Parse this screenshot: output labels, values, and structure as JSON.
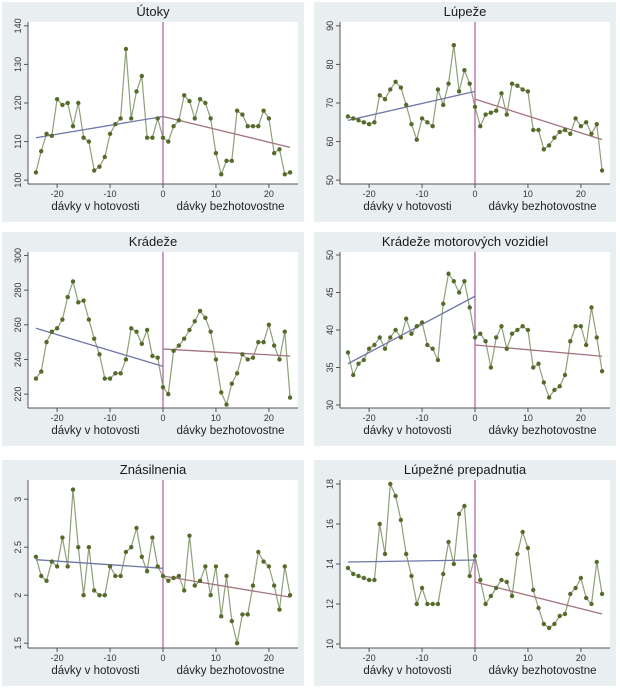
{
  "figure": {
    "x_labels": {
      "left": "dávky v hotovosti",
      "right": "dávky bezhotovostne"
    },
    "colors": {
      "panel_bg": "#e9eef1",
      "plot_bg": "#ffffff",
      "series_line": "#8fa07a",
      "marker": "#566b2a",
      "fit_left": "#6f76a9",
      "fit_right": "#a3747e",
      "cutoff": "#9b3a8e",
      "axis": "#555555"
    }
  },
  "chart_data": [
    {
      "type": "line",
      "title": "Útoky",
      "x": [
        -24,
        -23,
        -22,
        -21,
        -20,
        -19,
        -18,
        -17,
        -16,
        -15,
        -14,
        -13,
        -12,
        -11,
        -10,
        -9,
        -8,
        -7,
        -6,
        -5,
        -4,
        -3,
        -2,
        -1,
        0,
        1,
        2,
        3,
        4,
        5,
        6,
        7,
        8,
        9,
        10,
        11,
        12,
        13,
        14,
        15,
        16,
        17,
        18,
        19,
        20,
        21,
        22,
        23,
        24
      ],
      "values": [
        102,
        107.5,
        112,
        111.5,
        121,
        119.5,
        120,
        114,
        120,
        111,
        110,
        102.5,
        103.5,
        106,
        112,
        114.5,
        116,
        134,
        116,
        123,
        127,
        111,
        111,
        116,
        111,
        110,
        114,
        115.5,
        122,
        120.5,
        116,
        121,
        120,
        116,
        107,
        101.5,
        105,
        105,
        118,
        117,
        114,
        114,
        114,
        118,
        116,
        107,
        108,
        101.5,
        102
      ],
      "fit": [
        {
          "x": [
            -24,
            0
          ],
          "y": [
            111,
            116.5
          ]
        },
        {
          "x": [
            0,
            24
          ],
          "y": [
            116.5,
            108.5
          ]
        }
      ],
      "xticks": [
        -20,
        -10,
        0,
        10,
        20
      ],
      "yticks": [
        100,
        110,
        120,
        130,
        140
      ],
      "xlim": [
        -25.5,
        25.5
      ],
      "ylim": [
        99,
        141
      ]
    },
    {
      "type": "line",
      "title": "Lúpeže",
      "x": [
        -24,
        -23,
        -22,
        -21,
        -20,
        -19,
        -18,
        -17,
        -16,
        -15,
        -14,
        -13,
        -12,
        -11,
        -10,
        -9,
        -8,
        -7,
        -6,
        -5,
        -4,
        -3,
        -2,
        -1,
        0,
        1,
        2,
        3,
        4,
        5,
        6,
        7,
        8,
        9,
        10,
        11,
        12,
        13,
        14,
        15,
        16,
        17,
        18,
        19,
        20,
        21,
        22,
        23,
        24
      ],
      "values": [
        66.5,
        66,
        65.5,
        65,
        64.5,
        65,
        72,
        71,
        73.5,
        75.5,
        74,
        69.5,
        64.5,
        60.5,
        66,
        65,
        64,
        73.5,
        69.5,
        75,
        85,
        73,
        78.5,
        75,
        69,
        64,
        67,
        67.5,
        68,
        72.5,
        67,
        75,
        74.5,
        73.5,
        73,
        63,
        63,
        58,
        59,
        61,
        62.5,
        63,
        62,
        66,
        64,
        65,
        62,
        64.5,
        52.5
      ],
      "fit": [
        {
          "x": [
            -24,
            0
          ],
          "y": [
            65.5,
            73
          ]
        },
        {
          "x": [
            0,
            24
          ],
          "y": [
            71,
            60.5
          ]
        }
      ],
      "xticks": [
        -20,
        -10,
        0,
        10,
        20
      ],
      "yticks": [
        50,
        60,
        70,
        80,
        90
      ],
      "xlim": [
        -25.5,
        25.5
      ],
      "ylim": [
        49,
        91
      ]
    },
    {
      "type": "line",
      "title": "Krádeže",
      "x": [
        -24,
        -23,
        -22,
        -21,
        -20,
        -19,
        -18,
        -17,
        -16,
        -15,
        -14,
        -13,
        -12,
        -11,
        -10,
        -9,
        -8,
        -7,
        -6,
        -5,
        -4,
        -3,
        -2,
        -1,
        0,
        1,
        2,
        3,
        4,
        5,
        6,
        7,
        8,
        9,
        10,
        11,
        12,
        13,
        14,
        15,
        16,
        17,
        18,
        19,
        20,
        21,
        22,
        23,
        24
      ],
      "values": [
        229,
        233,
        250,
        256,
        258,
        263,
        276,
        285,
        273,
        274,
        263,
        252,
        243,
        229,
        229,
        232,
        232,
        240,
        258,
        256,
        249,
        257,
        242,
        241,
        224,
        220,
        245,
        248,
        252,
        257,
        262,
        268,
        264,
        256,
        240,
        221,
        214,
        226,
        232,
        243,
        240,
        241,
        250,
        250,
        260,
        248,
        240,
        256,
        218
      ],
      "fit": [
        {
          "x": [
            -24,
            0
          ],
          "y": [
            258,
            236
          ]
        },
        {
          "x": [
            0,
            24
          ],
          "y": [
            246,
            242
          ]
        }
      ],
      "xticks": [
        -20,
        -10,
        0,
        10,
        20
      ],
      "yticks": [
        220,
        240,
        260,
        280,
        300
      ],
      "xlim": [
        -25.5,
        25.5
      ],
      "ylim": [
        212,
        302
      ]
    },
    {
      "type": "line",
      "title": "Krádeže motorových vozidiel",
      "x": [
        -24,
        -23,
        -22,
        -21,
        -20,
        -19,
        -18,
        -17,
        -16,
        -15,
        -14,
        -13,
        -12,
        -11,
        -10,
        -9,
        -8,
        -7,
        -6,
        -5,
        -4,
        -3,
        -2,
        -1,
        0,
        1,
        2,
        3,
        4,
        5,
        6,
        7,
        8,
        9,
        10,
        11,
        12,
        13,
        14,
        15,
        16,
        17,
        18,
        19,
        20,
        21,
        22,
        23,
        24
      ],
      "values": [
        37,
        34,
        35.5,
        36,
        37.5,
        38,
        39,
        37.5,
        39,
        40,
        39,
        41.5,
        39.5,
        40.5,
        41,
        38,
        37.5,
        36,
        43.5,
        47.5,
        46.5,
        45,
        46.5,
        43,
        39,
        39.5,
        38.5,
        35,
        39,
        40.5,
        37.5,
        39.5,
        40,
        40.5,
        40,
        35,
        35.5,
        33,
        31,
        32,
        32.5,
        34,
        38.5,
        40.5,
        40.5,
        38,
        43,
        39,
        34.5
      ],
      "fit": [
        {
          "x": [
            -24,
            0
          ],
          "y": [
            35.5,
            44.5
          ]
        },
        {
          "x": [
            0,
            24
          ],
          "y": [
            38,
            36.5
          ]
        }
      ],
      "xticks": [
        -20,
        -10,
        0,
        10,
        20
      ],
      "yticks": [
        30,
        35,
        40,
        45,
        50
      ],
      "xlim": [
        -25.5,
        25.5
      ],
      "ylim": [
        29.6,
        50.4
      ]
    },
    {
      "type": "line",
      "title": "Znásilnenia",
      "x": [
        -24,
        -23,
        -22,
        -21,
        -20,
        -19,
        -18,
        -17,
        -16,
        -15,
        -14,
        -13,
        -12,
        -11,
        -10,
        -9,
        -8,
        -7,
        -6,
        -5,
        -4,
        -3,
        -2,
        -1,
        0,
        1,
        2,
        3,
        4,
        5,
        6,
        7,
        8,
        9,
        10,
        11,
        12,
        13,
        14,
        15,
        16,
        17,
        18,
        19,
        20,
        21,
        22,
        23,
        24
      ],
      "values": [
        2.4,
        2.2,
        2.15,
        2.35,
        2.3,
        2.6,
        2.3,
        3.1,
        2.5,
        2.0,
        2.5,
        2.05,
        2.0,
        2.0,
        2.3,
        2.2,
        2.2,
        2.45,
        2.5,
        2.7,
        2.4,
        2.25,
        2.6,
        2.3,
        2.2,
        2.15,
        2.18,
        2.2,
        2.05,
        2.62,
        2.1,
        2.15,
        2.3,
        2.0,
        2.3,
        1.78,
        2.2,
        1.73,
        1.5,
        1.8,
        1.8,
        2.1,
        2.45,
        2.35,
        2.3,
        2.1,
        1.85,
        2.3,
        2.0
      ],
      "fit": [
        {
          "x": [
            -24,
            0
          ],
          "y": [
            2.37,
            2.28
          ]
        },
        {
          "x": [
            0,
            24
          ],
          "y": [
            2.2,
            1.98
          ]
        }
      ],
      "xticks": [
        -20,
        -10,
        0,
        10,
        20
      ],
      "yticks": [
        1.5,
        2,
        2.5,
        3
      ],
      "ytick_labels": [
        "1.5",
        "2",
        "2.5",
        "3"
      ],
      "xlim": [
        -25.5,
        25.5
      ],
      "ylim": [
        1.45,
        3.2
      ]
    },
    {
      "type": "line",
      "title": "Lúpežné prepadnutia",
      "x": [
        -24,
        -23,
        -22,
        -21,
        -20,
        -19,
        -18,
        -17,
        -16,
        -15,
        -14,
        -13,
        -12,
        -11,
        -10,
        -9,
        -8,
        -7,
        -6,
        -5,
        -4,
        -3,
        -2,
        -1,
        0,
        1,
        2,
        3,
        4,
        5,
        6,
        7,
        8,
        9,
        10,
        11,
        12,
        13,
        14,
        15,
        16,
        17,
        18,
        19,
        20,
        21,
        22,
        23,
        24
      ],
      "values": [
        13.8,
        13.5,
        13.4,
        13.3,
        13.2,
        13.2,
        16,
        14.5,
        18,
        17.4,
        16.2,
        14.5,
        13.4,
        12,
        12.8,
        12,
        12,
        12,
        13.5,
        15.1,
        14,
        16.5,
        16.9,
        13.4,
        14.4,
        13.2,
        12,
        12.4,
        12.8,
        13.2,
        13.1,
        12.4,
        14.5,
        15.6,
        14.8,
        12.7,
        11.8,
        11,
        10.8,
        11,
        11.4,
        11.5,
        12.5,
        12.8,
        13.3,
        12.3,
        12,
        14.1,
        12.5
      ],
      "fit": [
        {
          "x": [
            -24,
            0
          ],
          "y": [
            14.1,
            14.2
          ]
        },
        {
          "x": [
            0,
            24
          ],
          "y": [
            13.1,
            11.5
          ]
        }
      ],
      "xticks": [
        -20,
        -10,
        0,
        10,
        20
      ],
      "yticks": [
        10,
        12,
        14,
        16,
        18
      ],
      "xlim": [
        -25.5,
        25.5
      ],
      "ylim": [
        9.8,
        18.2
      ]
    }
  ]
}
